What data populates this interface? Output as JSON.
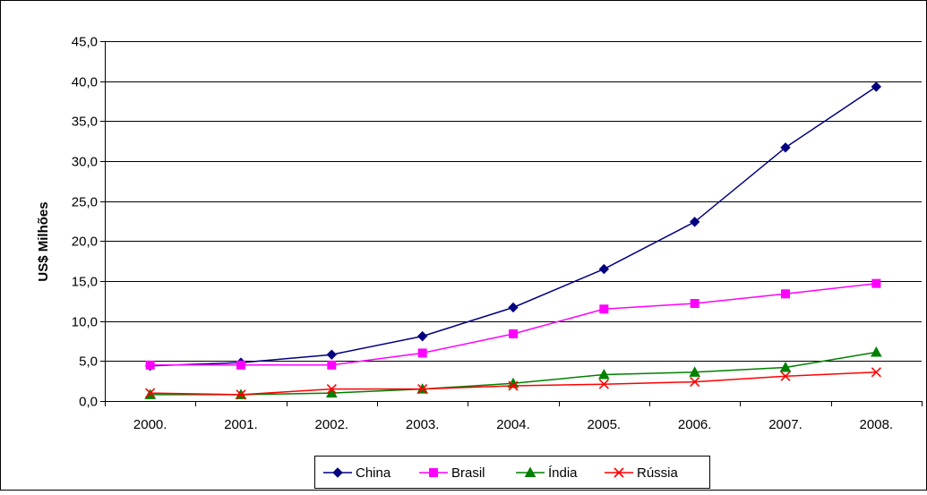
{
  "chart_data": {
    "type": "line",
    "title": "",
    "xlabel": "",
    "ylabel": "US$ Milhões",
    "categories": [
      "2000.",
      "2001.",
      "2002.",
      "2003.",
      "2004.",
      "2005.",
      "2006.",
      "2007.",
      "2008."
    ],
    "y_ticks": [
      "0,0",
      "5,0",
      "10,0",
      "15,0",
      "20,0",
      "25,0",
      "30,0",
      "35,0",
      "40,0",
      "45,0"
    ],
    "ylim": [
      0,
      45
    ],
    "grid": "horizontal",
    "legend_position": "bottom",
    "series": [
      {
        "name": "China",
        "color": "#000080",
        "marker": "diamond",
        "values": [
          4.4,
          4.8,
          5.8,
          8.1,
          11.7,
          16.5,
          22.4,
          31.7,
          39.3
        ]
      },
      {
        "name": "Brasil",
        "color": "#FF00FF",
        "marker": "square",
        "values": [
          4.5,
          4.5,
          4.5,
          6.0,
          8.4,
          11.5,
          12.2,
          13.4,
          14.7
        ]
      },
      {
        "name": "Índia",
        "color": "#008000",
        "marker": "triangle",
        "values": [
          0.8,
          0.8,
          1.0,
          1.5,
          2.2,
          3.3,
          3.6,
          4.2,
          6.1
        ]
      },
      {
        "name": "Rússia",
        "color": "#FF0000",
        "marker": "x",
        "values": [
          1.0,
          0.8,
          1.5,
          1.5,
          1.9,
          2.1,
          2.4,
          3.1,
          3.6
        ]
      }
    ]
  }
}
